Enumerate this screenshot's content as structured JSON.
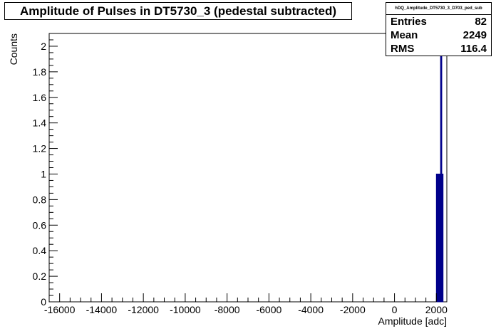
{
  "title": "Amplitude of Pulses in DT5730_3 (pedestal subtracted)",
  "stats": {
    "name": "hDQ_Amplitude_DT5730_3_D703_ped_sub",
    "rows": [
      {
        "label": "Entries",
        "value": "82"
      },
      {
        "label": "Mean",
        "value": "2249"
      },
      {
        "label": "RMS",
        "value": "116.4"
      }
    ]
  },
  "chart_data": {
    "type": "bar",
    "title": "Amplitude of Pulses in DT5730_3 (pedestal subtracted)",
    "xlabel": "Amplitude [adc]",
    "ylabel": "Counts",
    "xlim": [
      -16500,
      2500
    ],
    "ylim": [
      0,
      2.1
    ],
    "x_ticks": [
      -16000,
      -14000,
      -12000,
      -10000,
      -8000,
      -6000,
      -4000,
      -2000,
      0,
      2000
    ],
    "x_tick_labels": [
      "-16000",
      "-14000",
      "-12000",
      "-10000",
      "-8000",
      "-6000",
      "-4000",
      "-2000",
      "0",
      "2000"
    ],
    "y_ticks": [
      0,
      0.2,
      0.4,
      0.6,
      0.8,
      1,
      1.2,
      1.4,
      1.6,
      1.8,
      2
    ],
    "y_tick_labels": [
      "0",
      "0.2",
      "0.4",
      "0.6",
      "0.8",
      "1",
      "1.2",
      "1.4",
      "1.6",
      "1.8",
      "2"
    ],
    "bars": [
      {
        "x0": 2000,
        "x1": 2200,
        "value": 1
      },
      {
        "x0": 2200,
        "x1": 2260,
        "value": 2.1
      },
      {
        "x0": 2260,
        "x1": 2320,
        "value": 1
      }
    ],
    "bar_color": "#00008b",
    "grid": false,
    "legend": "top-right"
  }
}
